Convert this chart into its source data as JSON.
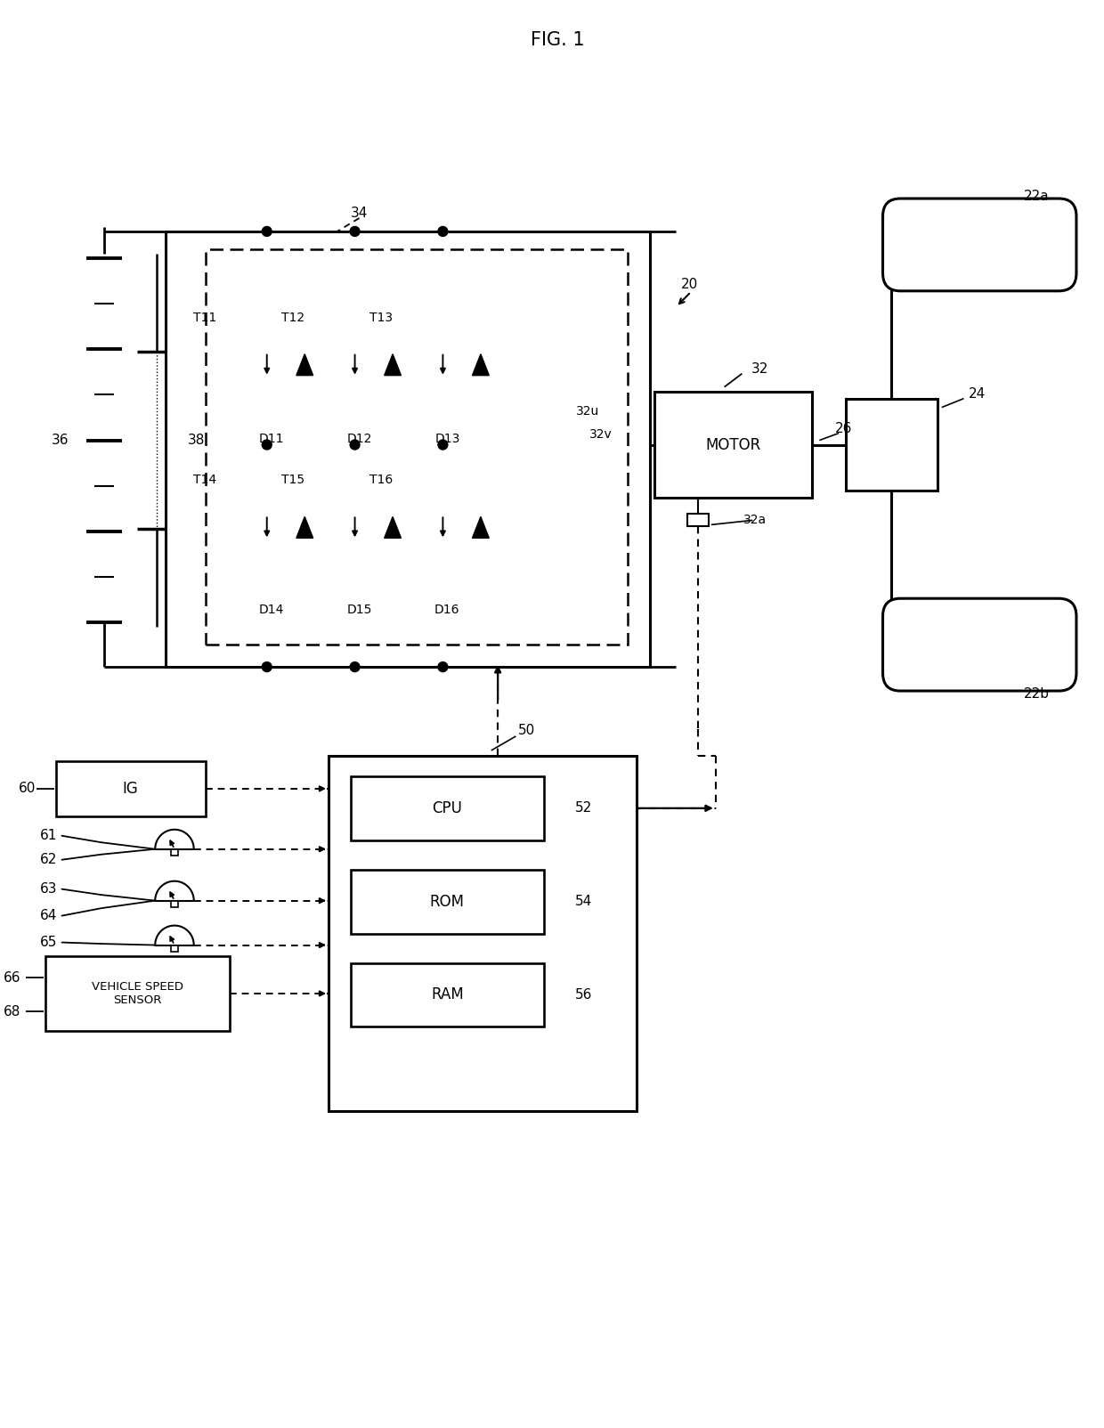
{
  "title": "FIG. 1",
  "bg": "#ffffff",
  "fw": 12.4,
  "fh": 16.04,
  "lbl": {
    "title": "FIG. 1",
    "20": "20",
    "22a": "22a",
    "22b": "22b",
    "24": "24",
    "26": "26",
    "32": "32",
    "32u": "32u",
    "32v": "32v",
    "32a": "32a",
    "34": "34",
    "36": "36",
    "38": "38",
    "50": "50",
    "52": "52",
    "54": "54",
    "56": "56",
    "60": "60",
    "61": "61",
    "62": "62",
    "63": "63",
    "64": "64",
    "65": "65",
    "66": "66",
    "68": "68",
    "T11": "T11",
    "T12": "T12",
    "T13": "T13",
    "T14": "T14",
    "T15": "T15",
    "T16": "T16",
    "D11": "D11",
    "D12": "D12",
    "D13": "D13",
    "D14": "D14",
    "D15": "D15",
    "D16": "D16",
    "MOTOR": "MOTOR",
    "CPU": "CPU",
    "ROM": "ROM",
    "RAM": "RAM",
    "IG": "IG",
    "VSS": "VEHICLE SPEED\nSENSOR"
  }
}
